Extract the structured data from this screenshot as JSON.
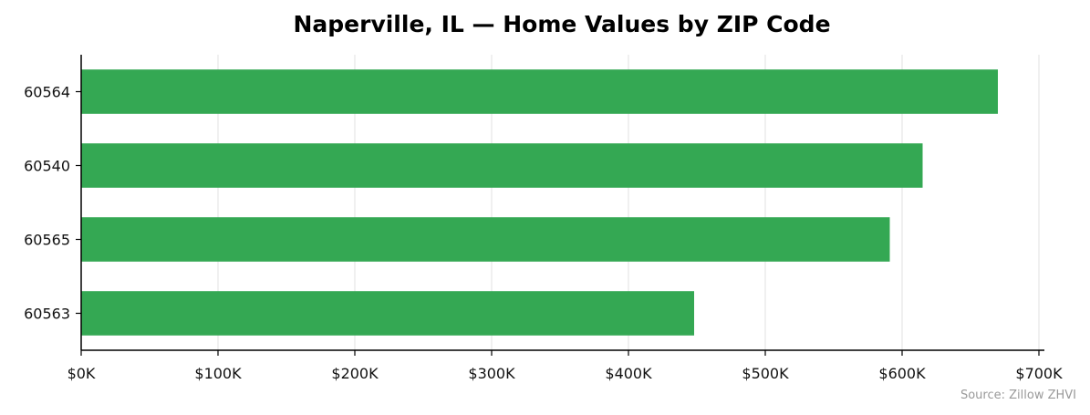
{
  "chart_data": {
    "type": "bar",
    "orientation": "horizontal",
    "title": "Naperville, IL — Home Values by ZIP Code",
    "xlabel": "",
    "ylabel": "",
    "categories": [
      "60564",
      "60540",
      "60565",
      "60563"
    ],
    "values": [
      670000,
      615000,
      591000,
      448000
    ],
    "xlim": [
      0,
      700000
    ],
    "x_ticks": [
      0,
      100000,
      200000,
      300000,
      400000,
      500000,
      600000,
      700000
    ],
    "x_tick_labels": [
      "$0K",
      "$100K",
      "$200K",
      "$300K",
      "$400K",
      "$500K",
      "$600K",
      "$700K"
    ],
    "grid": "vertical",
    "legend": "none",
    "source": "Source: Zillow ZHVI",
    "colors": {
      "bar": "#34a853",
      "grid": "#e6e6e6",
      "axis": "#000000",
      "source": "#999999"
    }
  }
}
